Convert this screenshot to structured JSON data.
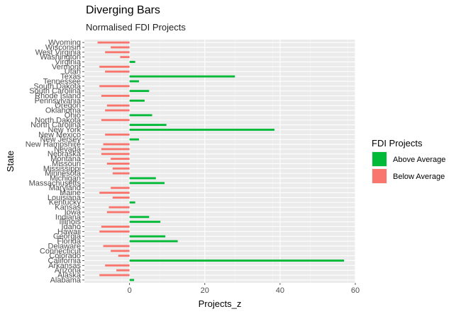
{
  "chart_data": {
    "type": "bar",
    "orientation": "horizontal",
    "title": "Diverging Bars",
    "subtitle": "Normalised FDI Projects",
    "xlabel": "Projects_z",
    "ylabel": "State",
    "xlim": [
      -12,
      60
    ],
    "xticks": [
      0,
      20,
      40,
      60
    ],
    "grid": true,
    "legend": {
      "title": "FDI Projects",
      "placement": "right",
      "entries": [
        {
          "name": "Above Average",
          "color": "#00BA38"
        },
        {
          "name": "Below Average",
          "color": "#F8766D"
        }
      ]
    },
    "categories": [
      "Alabama",
      "Alaska",
      "Arizona",
      "Arkansas",
      "California",
      "Colorado",
      "Connecticut",
      "Delaware",
      "Florida",
      "Georgia",
      "Hawaii",
      "Idaho",
      "Illinois",
      "Indiana",
      "Iowa",
      "Kansas",
      "Kentucky",
      "Louisiana",
      "Maine",
      "Maryland",
      "Massachusetts",
      "Michigan",
      "Minnesota",
      "Mississippi",
      "Missouri",
      "Montana",
      "Nebraska",
      "Nevada",
      "New Hampshire",
      "New Jersey",
      "New Mexico",
      "New York",
      "North Carolina",
      "North Dakota",
      "Ohio",
      "Oklahoma",
      "Oregon",
      "Pennsylvania",
      "Rhode Island",
      "South Carolina",
      "South Dakota",
      "Tennessee",
      "Texas",
      "Utah",
      "Vermont",
      "Virginia",
      "Washington",
      "West Virginia",
      "Wisconsin",
      "Wyoming"
    ],
    "values": [
      1.2,
      -8,
      -3.5,
      -6.5,
      57,
      -3,
      -5,
      -7,
      12.8,
      9.5,
      -8,
      -7.5,
      8.2,
      5.2,
      -6,
      -5.5,
      1.5,
      -4.5,
      -8,
      -5,
      9.3,
      7,
      -4.5,
      -4.5,
      -6,
      -5,
      -7.5,
      -7.5,
      -7,
      2.5,
      -6.5,
      38.5,
      9.8,
      -7.5,
      6,
      -6.5,
      -6,
      4,
      -7.5,
      5.2,
      -8,
      2.5,
      28,
      -6.5,
      -8,
      1.5,
      -2.5,
      -6.5,
      -5,
      -8.5
    ]
  }
}
